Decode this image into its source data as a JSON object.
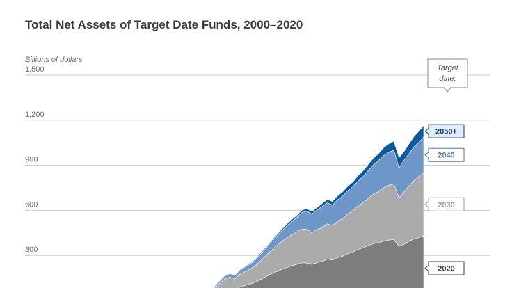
{
  "chart_data": {
    "type": "area",
    "title": "Total Net Assets of Target Date Funds, 2000–2020",
    "ylabel": "Billions of dollars",
    "ylim": [
      0,
      1500
    ],
    "y_ticks": [
      "300",
      "600",
      "900",
      "1,200",
      "1,500"
    ],
    "y_tick_values": [
      300,
      600,
      900,
      1200,
      1500
    ],
    "grid": true,
    "stacked": true,
    "legend_position": "right, labels at series ends",
    "legend_title": "Target date:",
    "x": [
      2007.3,
      2007.5,
      2007.75,
      2008.0,
      2008.25,
      2008.5,
      2008.75,
      2009.0,
      2009.25,
      2009.5,
      2009.75,
      2010.0,
      2010.25,
      2010.5,
      2010.75,
      2011.0,
      2011.25,
      2011.5,
      2011.75,
      2012.0,
      2012.25,
      2012.5,
      2012.75,
      2013.0,
      2013.25,
      2013.5,
      2013.75,
      2014.0,
      2014.25,
      2014.5,
      2014.75,
      2015.0,
      2015.25,
      2015.5,
      2015.75,
      2016.0,
      2016.25,
      2016.5,
      2016.75,
      2017.0,
      2017.25,
      2017.5,
      2017.75,
      2018.0,
      2018.25,
      2018.5,
      2018.75,
      2019.0,
      2019.25,
      2019.5,
      2019.75,
      2019.95
    ],
    "series": [
      {
        "name": "2050+",
        "color": "#0d5a9a",
        "label_color": "#0d3c78",
        "label_bg": "#e3ebf4",
        "values": [
          0,
          0,
          0,
          0,
          0,
          0,
          1,
          1,
          1,
          1,
          2,
          2,
          2,
          3,
          3,
          4,
          5,
          6,
          7,
          8,
          8,
          9,
          10,
          11,
          12,
          13,
          14,
          15,
          16,
          17,
          18,
          20,
          22,
          24,
          26,
          28,
          30,
          32,
          35,
          38,
          41,
          44,
          47,
          52,
          56,
          60,
          70,
          58,
          66,
          70,
          74,
          78
        ]
      },
      {
        "name": "2040",
        "color": "#6f96c9",
        "label_color": "#4e77ad",
        "label_bg": "#ffffff",
        "values": [
          0,
          1,
          2,
          4,
          5,
          7,
          8,
          5,
          4,
          8,
          12,
          16,
          20,
          24,
          24,
          28,
          30,
          32,
          38,
          44,
          48,
          56,
          60,
          70,
          80,
          88,
          96,
          110,
          120,
          125,
          130,
          140,
          140,
          135,
          145,
          150,
          155,
          160,
          165,
          175,
          185,
          195,
          205,
          215,
          220,
          225,
          200,
          210,
          215,
          225,
          232,
          238
        ]
      },
      {
        "name": "2030",
        "color": "#ababab",
        "label_color": "#9a9a9a",
        "label_bg": "#ffffff",
        "values": [
          0,
          2,
          4,
          6,
          10,
          14,
          20,
          16,
          15,
          25,
          40,
          55,
          70,
          75,
          70,
          85,
          92,
          100,
          110,
          125,
          140,
          155,
          170,
          185,
          195,
          205,
          215,
          225,
          225,
          210,
          220,
          225,
          235,
          230,
          240,
          250,
          265,
          275,
          290,
          300,
          315,
          330,
          340,
          355,
          365,
          370,
          320,
          350,
          370,
          390,
          405,
          420
        ]
      },
      {
        "name": "2020",
        "color": "#7d7d7d",
        "label_color": "#3b3b3b",
        "label_bg": "#ffffff",
        "values": [
          0,
          3,
          6,
          9,
          13,
          17,
          22,
          18,
          17,
          28,
          42,
          58,
          74,
          80,
          74,
          92,
          100,
          110,
          122,
          140,
          158,
          175,
          190,
          205,
          218,
          230,
          240,
          250,
          250,
          240,
          252,
          260,
          275,
          270,
          285,
          295,
          310,
          322,
          340,
          350,
          365,
          378,
          385,
          395,
          402,
          405,
          360,
          375,
          395,
          410,
          420,
          430
        ]
      }
    ]
  }
}
